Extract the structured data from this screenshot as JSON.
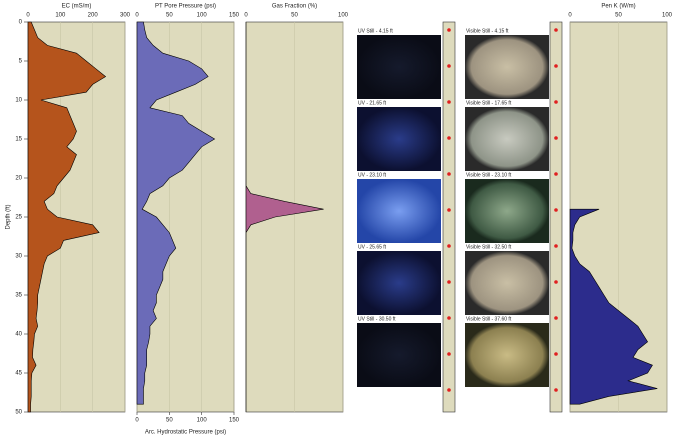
{
  "chart_data": {
    "type": "area",
    "depth_label": "Depth (ft)",
    "ylim": [
      0,
      50
    ],
    "yticks": [
      0,
      5,
      10,
      15,
      20,
      25,
      30,
      35,
      40,
      45,
      50
    ],
    "depth": [
      0,
      1,
      2,
      3,
      4,
      5,
      6,
      7,
      8,
      9,
      10,
      11,
      12,
      13,
      14,
      15,
      16,
      17,
      18,
      19,
      20,
      21,
      22,
      23,
      24,
      25,
      26,
      27,
      28,
      29,
      30,
      31,
      32,
      33,
      34,
      35,
      36,
      37,
      38,
      39,
      40,
      41,
      42,
      43,
      44,
      45,
      46,
      47,
      48,
      49,
      50
    ],
    "grid": true,
    "tracks": [
      {
        "title": "EC (mS/m)",
        "color": "#b5541c",
        "xlim": [
          0,
          300
        ],
        "xticks": [
          0,
          100,
          200,
          300
        ],
        "values": [
          10,
          20,
          30,
          60,
          150,
          180,
          210,
          240,
          200,
          180,
          40,
          120,
          130,
          140,
          150,
          140,
          120,
          150,
          140,
          130,
          110,
          90,
          80,
          50,
          60,
          90,
          200,
          220,
          110,
          100,
          60,
          50,
          45,
          40,
          35,
          30,
          30,
          28,
          25,
          30,
          20,
          18,
          15,
          14,
          25,
          12,
          10,
          10,
          10,
          8,
          8
        ]
      },
      {
        "title": "PT Pore Pressure (psi)",
        "color": "#6b6bb8",
        "xlim": [
          0,
          150
        ],
        "xticks": [
          0,
          50,
          100,
          150
        ],
        "bottom_title": "Arc. Hydrostatic Pressure (psi)",
        "bottom_ticks": [
          0,
          50,
          100,
          150
        ],
        "values": [
          10,
          12,
          15,
          25,
          40,
          80,
          100,
          110,
          90,
          60,
          30,
          20,
          70,
          80,
          100,
          120,
          100,
          90,
          80,
          70,
          50,
          40,
          20,
          15,
          8,
          30,
          40,
          50,
          55,
          60,
          50,
          45,
          40,
          40,
          35,
          30,
          30,
          25,
          30,
          20,
          20,
          18,
          15,
          15,
          15,
          12,
          12,
          10,
          10,
          10,
          null
        ]
      },
      {
        "title": "Gas Fraction (%)",
        "color": "#b0608f",
        "xlim": [
          0,
          100
        ],
        "xticks": [
          0,
          50,
          100
        ],
        "values": [
          0,
          0,
          0,
          0,
          0,
          0,
          0,
          0,
          0,
          0,
          0,
          0,
          0,
          0,
          0,
          0,
          0,
          0,
          0,
          0,
          0,
          0,
          5,
          40,
          80,
          30,
          5,
          0,
          0,
          0,
          0,
          0,
          0,
          0,
          0,
          0,
          0,
          0,
          0,
          0,
          0,
          0,
          0,
          0,
          0,
          0,
          0,
          0,
          0,
          0,
          0
        ]
      },
      {
        "title": "Pen K (W/m)",
        "color": "#2c2c8c",
        "xlim": [
          0,
          100
        ],
        "xticks": [
          0,
          50,
          100
        ],
        "values": [
          null,
          null,
          null,
          null,
          null,
          null,
          null,
          null,
          null,
          null,
          null,
          null,
          null,
          null,
          null,
          null,
          null,
          null,
          null,
          null,
          null,
          null,
          null,
          null,
          30,
          10,
          5,
          3,
          3,
          2,
          5,
          10,
          20,
          25,
          30,
          35,
          40,
          50,
          60,
          70,
          75,
          80,
          70,
          65,
          85,
          80,
          60,
          90,
          40,
          10,
          null
        ]
      }
    ]
  },
  "image_panels": {
    "uv": [
      "UV Still - 4.15 ft",
      "UV - 21.65 ft",
      "UV - 23.10 ft",
      "UV - 25.65 ft",
      "UV Still - 30.50 ft"
    ],
    "visible": [
      "Visible Still - 4.15 ft",
      "Visible Still - 17.65 ft",
      "Visible Still - 23.10 ft",
      "Visible Still - 32.50 ft",
      "Visible Still - 37.60 ft"
    ]
  }
}
